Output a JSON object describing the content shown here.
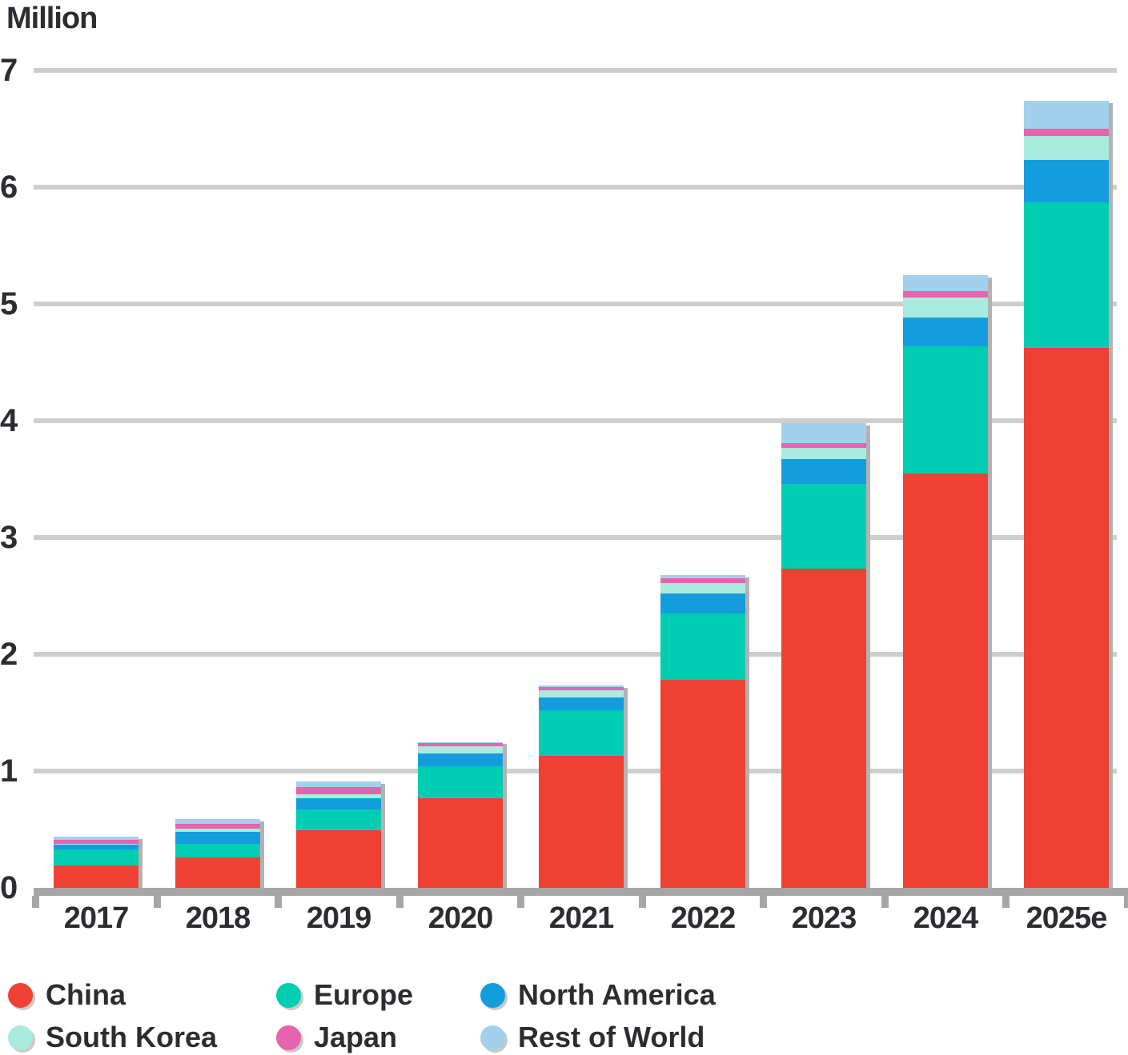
{
  "title": "Million",
  "colors": {
    "china": "#ee4133",
    "europe": "#00cdb2",
    "north_america": "#149ddc",
    "south_korea": "#a9ebdd",
    "japan": "#e763ae",
    "rest_of_world": "#a3d0ea",
    "gridline": "#cecece",
    "axis": "#a6a6a6",
    "bar_shadow": "#b2b2b2",
    "text": "#2d2c32"
  },
  "chart_data": {
    "type": "bar",
    "subtype": "stacked-vertical",
    "title": "Million",
    "xlabel": "",
    "ylabel": "Million",
    "ylim": [
      0,
      7
    ],
    "yticks": [
      0,
      1,
      2,
      3,
      4,
      5,
      6,
      7
    ],
    "grid": "horizontal",
    "legend_position": "bottom",
    "categories": [
      "2017",
      "2018",
      "2019",
      "2020",
      "2021",
      "2022",
      "2023",
      "2024",
      "2025e"
    ],
    "series": [
      {
        "name": "China",
        "color_key": "china",
        "values": [
          0.19,
          0.26,
          0.49,
          0.77,
          1.13,
          1.78,
          2.73,
          3.55,
          4.62
        ]
      },
      {
        "name": "Europe",
        "color_key": "europe",
        "values": [
          0.14,
          0.12,
          0.18,
          0.27,
          0.39,
          0.57,
          0.73,
          1.09,
          1.25
        ]
      },
      {
        "name": "North America",
        "color_key": "north_america",
        "values": [
          0.04,
          0.1,
          0.1,
          0.11,
          0.11,
          0.17,
          0.21,
          0.25,
          0.36
        ]
      },
      {
        "name": "South Korea",
        "color_key": "south_korea",
        "values": [
          0.01,
          0.03,
          0.03,
          0.06,
          0.06,
          0.09,
          0.1,
          0.17,
          0.21
        ]
      },
      {
        "name": "Japan",
        "color_key": "japan",
        "values": [
          0.03,
          0.04,
          0.06,
          0.03,
          0.03,
          0.04,
          0.04,
          0.05,
          0.06
        ]
      },
      {
        "name": "Rest of World",
        "color_key": "rest_of_world",
        "values": [
          0.03,
          0.04,
          0.05,
          0.01,
          0.01,
          0.03,
          0.17,
          0.14,
          0.24
        ]
      }
    ]
  },
  "legend": {
    "items": [
      {
        "label": "China",
        "color_key": "china"
      },
      {
        "label": "Europe",
        "color_key": "europe"
      },
      {
        "label": "North America",
        "color_key": "north_america"
      },
      {
        "label": "South Korea",
        "color_key": "south_korea"
      },
      {
        "label": "Japan",
        "color_key": "japan"
      },
      {
        "label": "Rest of World",
        "color_key": "rest_of_world"
      }
    ]
  }
}
